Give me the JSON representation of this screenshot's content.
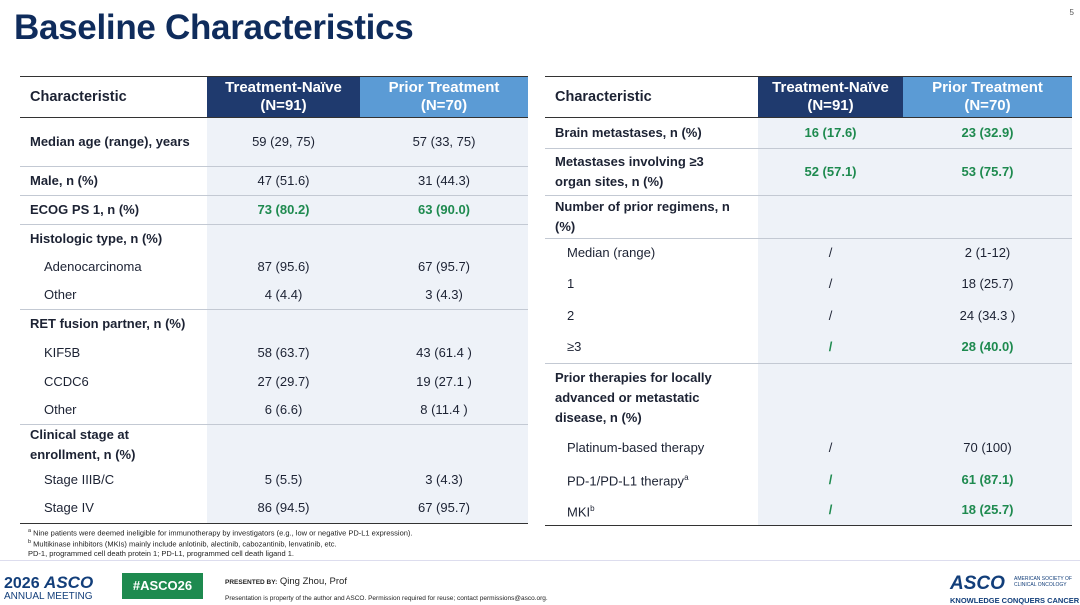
{
  "header": {
    "title": "Baseline Characteristics",
    "page_number": "5"
  },
  "left_table": {
    "header": {
      "label": "Characteristic",
      "groups": [
        {
          "name": "Treatment-Naïve",
          "n": "(N=91)"
        },
        {
          "name": "Prior Treatment",
          "n": "(N=70)"
        }
      ]
    },
    "rows": [
      {
        "label": "Median age (range), years",
        "values": [
          "59 (29, 75)",
          "57 (33, 75)"
        ]
      },
      {
        "label": "Male, n (%)",
        "values": [
          "47 (51.6)",
          "31 (44.3)"
        ]
      },
      {
        "label": "ECOG PS 1, n (%)",
        "values": [
          "73 (80.2)",
          "63 (90.0)"
        ]
      },
      {
        "label": "Histologic type, n (%)"
      },
      {
        "label": "Adenocarcinoma",
        "values": [
          "87 (95.6)",
          "67 (95.7)"
        ]
      },
      {
        "label": "Other",
        "values": [
          "4 (4.4)",
          "3 (4.3)"
        ]
      },
      {
        "label": "RET fusion partner, n (%)"
      },
      {
        "label": "KIF5B",
        "values": [
          "58 (63.7)",
          "43 (61.4 )"
        ]
      },
      {
        "label": "CCDC6",
        "values": [
          "27 (29.7)",
          "19 (27.1 )"
        ]
      },
      {
        "label": "Other",
        "values": [
          "6 (6.6)",
          "8 (11.4 )"
        ]
      },
      {
        "label": "Clinical stage at enrollment,  n (%)"
      },
      {
        "label": "Stage IIIB/C",
        "values": [
          "5 (5.5)",
          "3 (4.3)"
        ]
      },
      {
        "label": "Stage IV",
        "values": [
          "86 (94.5)",
          "67 (95.7)"
        ]
      }
    ]
  },
  "right_table": {
    "header": {
      "label": "Characteristic",
      "groups": [
        {
          "name": "Treatment-Naïve",
          "n": "(N=91)"
        },
        {
          "name": "Prior Treatment",
          "n": "(N=70)"
        }
      ]
    },
    "rows": [
      {
        "label": "Brain metastases, n (%)",
        "values": [
          "16 (17.6)",
          "23 (32.9)"
        ]
      },
      {
        "label": "Metastases involving ≥3 organ sites, n (%)",
        "values": [
          "52 (57.1)",
          "53 (75.7)"
        ]
      },
      {
        "label": "Number of prior regimens, n (%)"
      },
      {
        "label": "Median (range)",
        "values": [
          "/",
          "2 (1-12)"
        ]
      },
      {
        "label": "1",
        "values": [
          "/",
          "18 (25.7)"
        ]
      },
      {
        "label": "2",
        "values": [
          "/",
          "24 (34.3 )"
        ]
      },
      {
        "label": "≥3",
        "values": [
          "/",
          "28 (40.0)"
        ]
      },
      {
        "label": "Prior therapies for locally advanced or metastatic disease, n (%)"
      },
      {
        "label": "Platinum-based therapy",
        "values": [
          "/",
          "70 (100)"
        ]
      },
      {
        "label": "PD-1/PD-L1 therapy",
        "mark": "a",
        "values": [
          "/",
          "61 (87.1)"
        ]
      },
      {
        "label": "MKI",
        "mark": "b",
        "values": [
          "/",
          "18 (25.7)"
        ]
      }
    ]
  },
  "footnotes": [
    {
      "mark": "a",
      "text": "Nine patients were deemed ineligible for immunotherapy by investigators (e.g., low or negative PD-L1 expression)."
    },
    {
      "mark": "b",
      "text": "Multikinase inhibitors (MKIs) mainly include anlotinib, alectinib, cabozantinib, lenvatinib, etc."
    },
    {
      "text": "PD-1, programmed cell death protein 1; PD-L1, programmed cell death ligand 1."
    }
  ],
  "footer": {
    "meeting_year": "2026",
    "meeting_brand": "ASCO",
    "meeting_name": "ANNUAL MEETING",
    "hashtag": "#ASCO26",
    "presented_by_label": "PRESENTED BY:",
    "presenter": "Qing Zhou, Prof",
    "notice": "Presentation is property of the author and ASCO. Permission required for reuse; contact permissions@asco.org.",
    "org_brand": "ASCO",
    "org_name_1": "AMERICAN SOCIETY OF",
    "org_name_2": "CLINICAL ONCOLOGY",
    "tagline": "KNOWLEDGE CONQUERS CANCER"
  }
}
